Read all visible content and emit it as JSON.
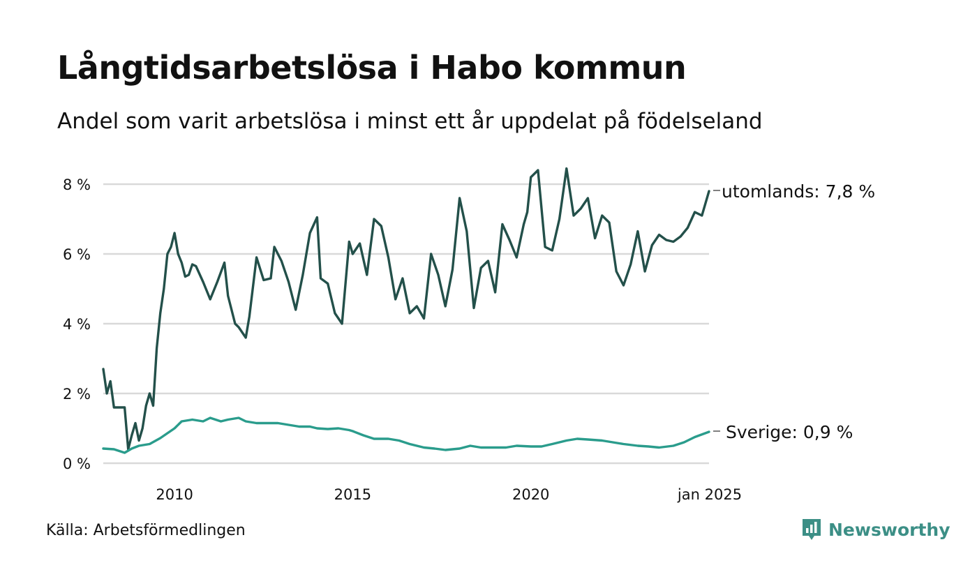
{
  "header": {
    "title": "Långtidsarbetslösa i Habo kommun",
    "subtitle": "Andel som varit arbetslösa i minst ett år uppdelat på födelseland"
  },
  "footer": {
    "source": "Källa: Arbetsförmedlingen",
    "brand": "Newsworthy",
    "brand_icon": "bar-chart-speech-icon",
    "brand_color": "#3c8f86"
  },
  "chart_data": {
    "type": "line",
    "title": "Långtidsarbetslösa i Habo kommun",
    "subtitle": "Andel som varit arbetslösa i minst ett år uppdelat på födelseland",
    "xlabel": "",
    "ylabel": "",
    "ylim": [
      0,
      8
    ],
    "xlim": [
      2008.0,
      2025.0
    ],
    "yticks": [
      0,
      2,
      4,
      6,
      8
    ],
    "ytick_labels": [
      "0 %",
      "2 %",
      "4 %",
      "6 %",
      "8 %"
    ],
    "xticks": [
      2010,
      2015,
      2020,
      2025
    ],
    "xtick_labels": [
      "2010",
      "2015",
      "2020",
      "jan 2025"
    ],
    "grid": "horizontal",
    "legend": "direct labels at line ends",
    "series": [
      {
        "name": "utomlands",
        "label": "utomlands: 7,8 %",
        "color": "#23504a",
        "x": [
          2008.0,
          2008.1,
          2008.2,
          2008.3,
          2008.5,
          2008.6,
          2008.7,
          2008.8,
          2008.9,
          2009.0,
          2009.1,
          2009.2,
          2009.3,
          2009.4,
          2009.5,
          2009.6,
          2009.7,
          2009.8,
          2009.9,
          2010.0,
          2010.1,
          2010.2,
          2010.3,
          2010.4,
          2010.5,
          2010.6,
          2010.8,
          2011.0,
          2011.2,
          2011.4,
          2011.5,
          2011.7,
          2011.8,
          2012.0,
          2012.1,
          2012.3,
          2012.5,
          2012.7,
          2012.8,
          2013.0,
          2013.2,
          2013.4,
          2013.6,
          2013.8,
          2014.0,
          2014.1,
          2014.3,
          2014.5,
          2014.7,
          2014.9,
          2015.0,
          2015.2,
          2015.4,
          2015.6,
          2015.8,
          2016.0,
          2016.2,
          2016.4,
          2016.6,
          2016.8,
          2017.0,
          2017.2,
          2017.4,
          2017.6,
          2017.8,
          2018.0,
          2018.2,
          2018.4,
          2018.6,
          2018.8,
          2019.0,
          2019.2,
          2019.4,
          2019.6,
          2019.8,
          2019.9,
          2020.0,
          2020.2,
          2020.4,
          2020.6,
          2020.8,
          2021.0,
          2021.2,
          2021.4,
          2021.6,
          2021.8,
          2022.0,
          2022.2,
          2022.4,
          2022.6,
          2022.8,
          2023.0,
          2023.2,
          2023.4,
          2023.6,
          2023.8,
          2024.0,
          2024.2,
          2024.4,
          2024.6,
          2024.8,
          2025.0
        ],
        "values": [
          2.7,
          2.0,
          2.35,
          1.6,
          1.6,
          1.6,
          0.4,
          0.8,
          1.15,
          0.65,
          1.0,
          1.65,
          2.0,
          1.65,
          3.3,
          4.3,
          5.0,
          6.0,
          6.2,
          6.6,
          6.0,
          5.75,
          5.35,
          5.4,
          5.7,
          5.65,
          5.2,
          4.7,
          5.2,
          5.75,
          4.8,
          4.0,
          3.9,
          3.6,
          4.2,
          5.9,
          5.25,
          5.3,
          6.2,
          5.8,
          5.2,
          4.4,
          5.4,
          6.6,
          7.05,
          5.3,
          5.15,
          4.3,
          4.0,
          6.35,
          6.0,
          6.3,
          5.4,
          7.0,
          6.8,
          5.9,
          4.7,
          5.3,
          4.3,
          4.5,
          4.15,
          6.0,
          5.4,
          4.5,
          5.55,
          7.6,
          6.65,
          4.45,
          5.6,
          5.8,
          4.9,
          6.85,
          6.4,
          5.9,
          6.85,
          7.2,
          8.2,
          8.4,
          6.2,
          6.1,
          7.0,
          8.45,
          7.1,
          7.3,
          7.6,
          6.45,
          7.1,
          6.9,
          5.5,
          5.1,
          5.7,
          6.65,
          5.5,
          6.25,
          6.55,
          6.4,
          6.35,
          6.5,
          6.75,
          7.2,
          7.1,
          7.8
        ]
      },
      {
        "name": "Sverige",
        "label": "Sverige: 0,9 %",
        "color": "#2a9c8c",
        "x": [
          2008.0,
          2008.3,
          2008.6,
          2008.8,
          2009.0,
          2009.3,
          2009.6,
          2010.0,
          2010.2,
          2010.5,
          2010.8,
          2011.0,
          2011.3,
          2011.5,
          2011.8,
          2012.0,
          2012.3,
          2012.6,
          2012.9,
          2013.2,
          2013.5,
          2013.8,
          2014.0,
          2014.3,
          2014.6,
          2014.9,
          2015.0,
          2015.3,
          2015.6,
          2016.0,
          2016.3,
          2016.6,
          2017.0,
          2017.3,
          2017.6,
          2018.0,
          2018.3,
          2018.6,
          2019.0,
          2019.3,
          2019.6,
          2020.0,
          2020.3,
          2020.6,
          2021.0,
          2021.3,
          2021.6,
          2022.0,
          2022.3,
          2022.6,
          2023.0,
          2023.3,
          2023.6,
          2024.0,
          2024.3,
          2024.6,
          2025.0
        ],
        "values": [
          0.42,
          0.4,
          0.3,
          0.42,
          0.5,
          0.55,
          0.72,
          1.0,
          1.2,
          1.25,
          1.2,
          1.3,
          1.2,
          1.25,
          1.3,
          1.2,
          1.15,
          1.15,
          1.15,
          1.1,
          1.05,
          1.05,
          1.0,
          0.98,
          1.0,
          0.95,
          0.92,
          0.8,
          0.7,
          0.7,
          0.65,
          0.55,
          0.45,
          0.42,
          0.38,
          0.42,
          0.5,
          0.45,
          0.45,
          0.45,
          0.5,
          0.48,
          0.48,
          0.55,
          0.65,
          0.7,
          0.68,
          0.65,
          0.6,
          0.55,
          0.5,
          0.48,
          0.45,
          0.5,
          0.6,
          0.75,
          0.9
        ]
      }
    ]
  }
}
